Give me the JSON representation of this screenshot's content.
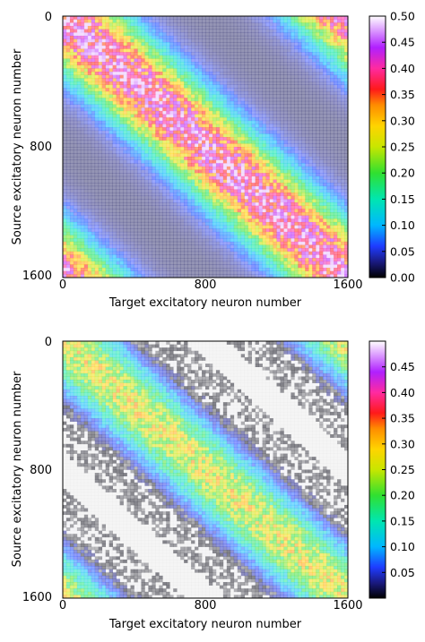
{
  "chart_data": [
    {
      "type": "heatmap",
      "xlabel": "Target excitatory neuron number",
      "ylabel": "Source excitatory neuron number",
      "xticks": [
        "0",
        "800",
        "1600"
      ],
      "yticks": [
        "0",
        "800",
        "1600"
      ],
      "xlim": [
        0,
        1600
      ],
      "ylim": [
        0,
        1600
      ],
      "colorbar": {
        "range": [
          0.0,
          0.5
        ],
        "ticks": [
          "0.00",
          "0.05",
          "0.10",
          "0.15",
          "0.20",
          "0.25",
          "0.30",
          "0.35",
          "0.40",
          "0.45",
          "0.50"
        ]
      },
      "pattern": {
        "description_values": "band of strong weights along main diagonal (peak ~0.45), weak weights elsewhere",
        "peak_value": 0.45,
        "baseline_value": 0.02,
        "band_sigma_neurons": 220
      }
    },
    {
      "type": "heatmap",
      "xlabel": "Target excitatory neuron number",
      "ylabel": "Source excitatory neuron number",
      "xticks": [
        "0",
        "800",
        "1600"
      ],
      "yticks": [
        "0",
        "800",
        "1600"
      ],
      "xlim": [
        0,
        1600
      ],
      "ylim": [
        0,
        1600
      ],
      "colorbar": {
        "range": [
          0.0,
          0.5
        ],
        "ticks": [
          "0.05",
          "0.10",
          "0.15",
          "0.20",
          "0.25",
          "0.30",
          "0.35",
          "0.40",
          "0.45"
        ]
      },
      "pattern": {
        "peak_value": 0.28,
        "baseline_value": 0.0,
        "dark_band_value": 0.01,
        "band_sigma_neurons": 200
      }
    }
  ]
}
